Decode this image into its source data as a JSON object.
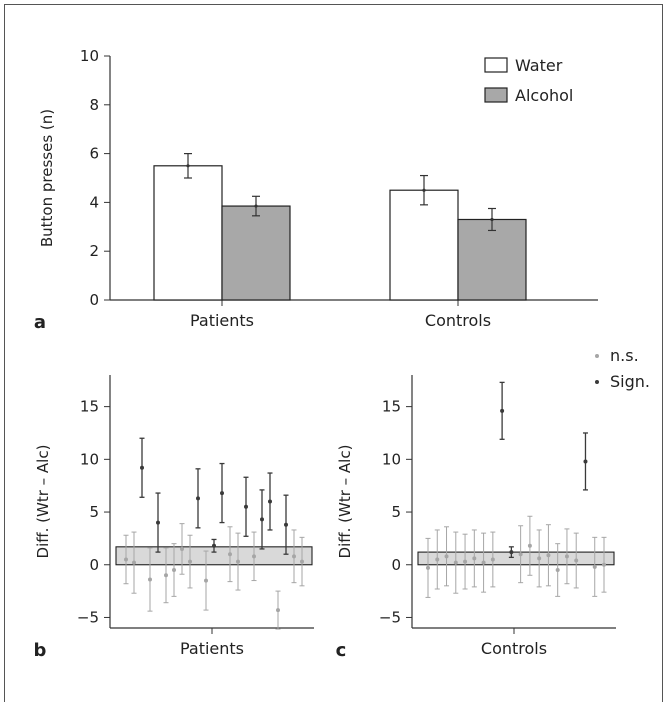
{
  "chart_data": [
    {
      "panel": "a",
      "type": "bar",
      "ylabel": "Button presses (n)",
      "ylim": [
        0,
        10
      ],
      "yticks": [
        "0",
        "2",
        "4",
        "6",
        "8",
        "10"
      ],
      "categories": [
        "Patients",
        "Controls"
      ],
      "series": [
        {
          "name": "Water",
          "values": [
            5.5,
            4.5
          ],
          "err": [
            0.5,
            0.6
          ],
          "color": "#ffffff"
        },
        {
          "name": "Alcohol",
          "values": [
            3.85,
            3.3
          ],
          "err": [
            0.4,
            0.45
          ],
          "color": "#a8a8a8"
        }
      ],
      "legend": "top-right"
    },
    {
      "panel": "b",
      "type": "scatter",
      "ylabel": "Diff. (Wtr – Alc)",
      "xlabel": "Patients",
      "ylim": [
        -6,
        18
      ],
      "yticks": [
        "−5",
        "0",
        "5",
        "10",
        "15"
      ],
      "mean": 1.7,
      "mean_err": 0.6,
      "legend": "top-right",
      "points": [
        {
          "y": 0.5,
          "err": 2.3,
          "sig": false
        },
        {
          "y": 0.2,
          "err": 2.9,
          "sig": false
        },
        {
          "y": 9.2,
          "err": 2.8,
          "sig": true
        },
        {
          "y": -1.4,
          "err": 3.0,
          "sig": false
        },
        {
          "y": 4.0,
          "err": 2.8,
          "sig": true
        },
        {
          "y": -1.0,
          "err": 2.6,
          "sig": false
        },
        {
          "y": -0.5,
          "err": 2.5,
          "sig": false
        },
        {
          "y": 1.5,
          "err": 2.4,
          "sig": false
        },
        {
          "y": 0.3,
          "err": 2.5,
          "sig": false
        },
        {
          "y": 6.3,
          "err": 2.8,
          "sig": true
        },
        {
          "y": -1.5,
          "err": 2.8,
          "sig": false
        },
        {
          "y": 1.8,
          "err": 0.6,
          "sig": true
        },
        {
          "y": 6.8,
          "err": 2.8,
          "sig": true
        },
        {
          "y": 1.0,
          "err": 2.6,
          "sig": false
        },
        {
          "y": 0.3,
          "err": 2.7,
          "sig": false
        },
        {
          "y": 5.5,
          "err": 2.8,
          "sig": true
        },
        {
          "y": 0.8,
          "err": 2.3,
          "sig": false
        },
        {
          "y": 4.3,
          "err": 2.8,
          "sig": true
        },
        {
          "y": 6.0,
          "err": 2.7,
          "sig": true
        },
        {
          "y": -4.3,
          "err": 1.8,
          "sig": false
        },
        {
          "y": 3.8,
          "err": 2.8,
          "sig": true
        },
        {
          "y": 0.8,
          "err": 2.5,
          "sig": false
        },
        {
          "y": 0.3,
          "err": 2.3,
          "sig": false
        }
      ]
    },
    {
      "panel": "c",
      "type": "scatter",
      "ylabel": "Diff. (Wtr – Alc)",
      "xlabel": "Controls",
      "ylim": [
        -6,
        18
      ],
      "yticks": [
        "−5",
        "0",
        "5",
        "10",
        "15"
      ],
      "mean": 1.2,
      "mean_err": 0.5,
      "legend": "top-right",
      "points": [
        {
          "y": -0.3,
          "err": 2.8,
          "sig": false
        },
        {
          "y": 0.5,
          "err": 2.8,
          "sig": false
        },
        {
          "y": 0.8,
          "err": 2.8,
          "sig": false
        },
        {
          "y": 0.2,
          "err": 2.9,
          "sig": false
        },
        {
          "y": 0.3,
          "err": 2.6,
          "sig": false
        },
        {
          "y": 0.6,
          "err": 2.7,
          "sig": false
        },
        {
          "y": 0.2,
          "err": 2.8,
          "sig": false
        },
        {
          "y": 0.5,
          "err": 2.6,
          "sig": false
        },
        {
          "y": 14.6,
          "err": 2.7,
          "sig": true
        },
        {
          "y": 1.2,
          "err": 0.5,
          "sig": true
        },
        {
          "y": 1.0,
          "err": 2.7,
          "sig": false
        },
        {
          "y": 1.8,
          "err": 2.8,
          "sig": false
        },
        {
          "y": 0.6,
          "err": 2.7,
          "sig": false
        },
        {
          "y": 0.9,
          "err": 2.9,
          "sig": false
        },
        {
          "y": -0.5,
          "err": 2.5,
          "sig": false
        },
        {
          "y": 0.8,
          "err": 2.6,
          "sig": false
        },
        {
          "y": 0.4,
          "err": 2.6,
          "sig": false
        },
        {
          "y": 9.8,
          "err": 2.7,
          "sig": true
        },
        {
          "y": -0.2,
          "err": 2.8,
          "sig": false
        },
        {
          "y": 0.0,
          "err": 2.6,
          "sig": false
        }
      ]
    }
  ],
  "legend_b": {
    "ns_label": "n.s.",
    "sig_label": "Sign."
  }
}
